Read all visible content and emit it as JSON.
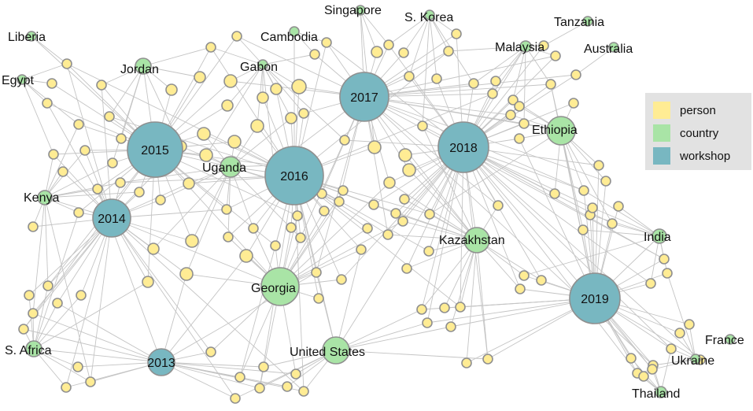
{
  "colors": {
    "person": "#ffec94",
    "country": "#a9e4a6",
    "workshop": "#78b7c1"
  },
  "legend": [
    {
      "key": "person",
      "label": "person"
    },
    {
      "key": "country",
      "label": "country"
    },
    {
      "key": "workshop",
      "label": "workshop"
    }
  ],
  "workshops": [
    "2013",
    "2014",
    "2015",
    "2016",
    "2017",
    "2018",
    "2019"
  ],
  "countries": [
    "Liberia",
    "Egypt",
    "Jordan",
    "Gabon",
    "Cambodia",
    "Singapore",
    "S. Korea",
    "Tanzania",
    "Malaysia",
    "Australia",
    "Ethiopia",
    "Uganda",
    "Kenya",
    "India",
    "Kazakhstan",
    "Georgia",
    "United States",
    "S. Africa",
    "France",
    "Ukraine",
    "Thailand"
  ]
}
